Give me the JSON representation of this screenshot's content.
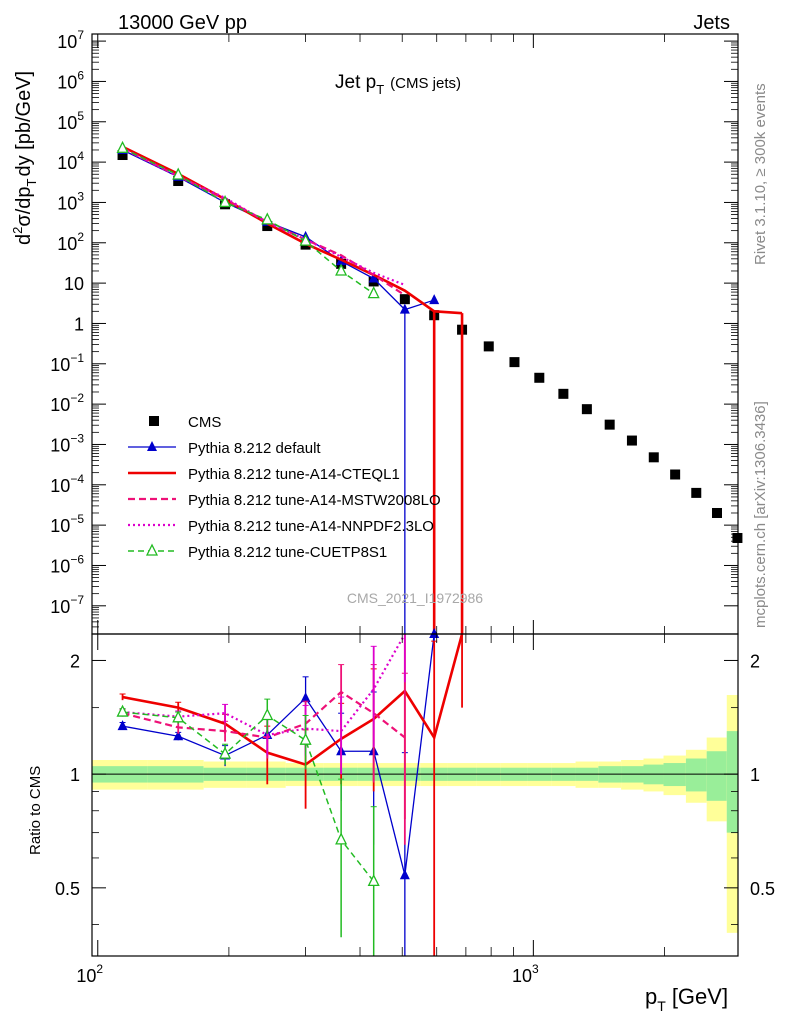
{
  "header": {
    "process": "13000 GeV pp",
    "category": "Jets"
  },
  "side_labels": {
    "rivet": "Rivet 3.1.10, ≥ 300k events",
    "mcplots": "mcplots.cern.ch [arXiv:1306.3436]"
  },
  "watermark": "CMS_2021_I1972986",
  "chart_data": [
    {
      "type": "scatter",
      "panel": "main",
      "title": "Jet p_T (CMS jets)",
      "title_main": "Jet p",
      "title_sub": "T",
      "title_suffix": "(CMS jets)",
      "xlabel": "p_T [GeV]",
      "xlabel_main": "p",
      "xlabel_sub": "T",
      "xlabel_unit": "[GeV]",
      "ylabel": "d²σ/dp_T dy [pb/GeV]",
      "ylabel_parts": {
        "d": "d",
        "sup2": "2",
        "sigma": "σ/dp",
        "subT": "T",
        "rest": "dy [pb/GeV]"
      },
      "xscale": "log",
      "yscale": "log",
      "xlim": [
        97,
        2950
      ],
      "ylim": [
        2e-08,
        15000000.0
      ],
      "x_ticks": [
        {
          "v": 100,
          "base": "10",
          "exp": "2"
        },
        {
          "v": 1000,
          "base": "10",
          "exp": "3"
        }
      ],
      "y_ticks": [
        {
          "v": 10000000.0,
          "base": "10",
          "exp": "7"
        },
        {
          "v": 1000000.0,
          "base": "10",
          "exp": "6"
        },
        {
          "v": 100000.0,
          "base": "10",
          "exp": "5"
        },
        {
          "v": 10000.0,
          "base": "10",
          "exp": "4"
        },
        {
          "v": 1000.0,
          "base": "10",
          "exp": "3"
        },
        {
          "v": 100.0,
          "base": "10",
          "exp": "2"
        },
        {
          "v": 10,
          "base": "10",
          "exp": ""
        },
        {
          "v": 1,
          "base": "1",
          "exp": ""
        },
        {
          "v": 0.1,
          "base": "10",
          "exp": "−1"
        },
        {
          "v": 0.01,
          "base": "10",
          "exp": "−2"
        },
        {
          "v": 0.001,
          "base": "10",
          "exp": "−3"
        },
        {
          "v": 0.0001,
          "base": "10",
          "exp": "−4"
        },
        {
          "v": 1e-05,
          "base": "10",
          "exp": "−5"
        },
        {
          "v": 1e-06,
          "base": "10",
          "exp": "−6"
        },
        {
          "v": 1e-07,
          "base": "10",
          "exp": "−7"
        }
      ],
      "legend_position": "bottom-left",
      "series": [
        {
          "name": "CMS",
          "color": "#000000",
          "style": "marker",
          "marker": "square",
          "x": [
            114,
            153,
            196,
            245,
            300,
            362,
            430,
            507,
            592,
            686,
            790,
            905,
            1032,
            1172,
            1327,
            1497,
            1684,
            1890,
            2116,
            2366,
            2640,
            2941
          ],
          "y": [
            15000.0,
            3400.0,
            900.0,
            260.0,
            90.0,
            30.0,
            11.0,
            4.0,
            1.6,
            0.7,
            0.27,
            0.11,
            0.045,
            0.018,
            0.0075,
            0.0031,
            0.00125,
            0.00048,
            0.00018,
            6.3e-05,
            2e-05,
            4.8e-06
          ]
        },
        {
          "name": "Pythia 8.212 default",
          "color": "#0000cc",
          "style": "solid-thin",
          "marker": "triangle",
          "x": [
            114,
            153,
            196,
            245,
            300,
            362,
            430,
            507,
            592
          ],
          "y": [
            20000.0,
            4300.0,
            1000.0,
            330.0,
            140.0,
            35.0,
            13.0,
            2.2,
            3.8
          ]
        },
        {
          "name": "Pythia 8.212 tune-A14-CTEQL1",
          "color": "#ee0000",
          "style": "solid-thick",
          "marker": "none",
          "x": [
            114,
            153,
            196,
            245,
            300,
            362,
            430,
            507,
            592,
            686
          ],
          "y": [
            24000.0,
            5100.0,
            1200.0,
            300.0,
            95.0,
            38.0,
            16.0,
            6.5,
            2.0,
            1.8
          ]
        },
        {
          "name": "Pythia 8.212 tune-A14-MSTW2008LO",
          "color": "#ee1177",
          "style": "dashed",
          "marker": "none",
          "x": [
            114,
            153,
            196,
            245,
            300,
            362,
            430,
            507
          ],
          "y": [
            22000.0,
            4500.0,
            1200.0,
            330.0,
            120.0,
            49.0,
            16.0,
            5.0
          ]
        },
        {
          "name": "Pythia 8.212 tune-A14-NNPDF2.3LO",
          "color": "#dd00cc",
          "style": "dotted",
          "marker": "none",
          "x": [
            114,
            153,
            196,
            245,
            300,
            362,
            430,
            507
          ],
          "y": [
            22000.0,
            4400.0,
            1300.0,
            320.0,
            120.0,
            45.0,
            18.0,
            9.0
          ]
        },
        {
          "name": "Pythia 8.212 tune-CUETP8S1",
          "color": "#22bb22",
          "style": "dashed-thin",
          "marker": "open-triangle",
          "x": [
            114,
            153,
            196,
            245,
            300,
            362,
            430
          ],
          "y": [
            22000.0,
            4800.0,
            1000.0,
            370.0,
            110.0,
            20.0,
            5.5
          ]
        }
      ]
    },
    {
      "type": "line",
      "panel": "ratio",
      "ylabel": "Ratio to CMS",
      "yscale": "log",
      "xlim": [
        97,
        2950
      ],
      "ylim": [
        0.33,
        2.35
      ],
      "y_ticks": [
        {
          "v": 0.5,
          "label": "0.5"
        },
        {
          "v": 1,
          "label": "1"
        },
        {
          "v": 2,
          "label": "2"
        }
      ],
      "data_band": {
        "x_edges": [
          97,
          130,
          175,
          220,
          270,
          330,
          395,
          465,
          550,
          635,
          740,
          840,
          970,
          1100,
          1250,
          1410,
          1590,
          1790,
          1990,
          2240,
          2500,
          2780,
          2950
        ],
        "stat_half": [
          0.05,
          0.05,
          0.04,
          0.04,
          0.04,
          0.04,
          0.04,
          0.04,
          0.04,
          0.04,
          0.04,
          0.04,
          0.04,
          0.04,
          0.04,
          0.05,
          0.05,
          0.06,
          0.07,
          0.1,
          0.15,
          0.3
        ],
        "total_half": [
          0.09,
          0.09,
          0.08,
          0.08,
          0.07,
          0.07,
          0.07,
          0.07,
          0.07,
          0.07,
          0.07,
          0.07,
          0.07,
          0.07,
          0.08,
          0.08,
          0.09,
          0.1,
          0.12,
          0.16,
          0.25,
          0.62
        ]
      },
      "series": [
        {
          "name": "Pythia 8.212 default",
          "x": [
            114,
            153,
            196,
            245,
            300,
            362,
            430,
            507,
            592
          ],
          "y": [
            1.34,
            1.26,
            1.12,
            1.27,
            1.59,
            1.15,
            1.15,
            0.54,
            2.35
          ],
          "err": [
            0.03,
            0.03,
            0.07,
            0.15,
            0.22,
            0.3,
            0.5,
            0.6,
            1.5
          ]
        },
        {
          "name": "Pythia 8.212 tune-A14-CTEQL1",
          "x": [
            114,
            153,
            196,
            245,
            300,
            362,
            430,
            507,
            592,
            686
          ],
          "y": [
            1.6,
            1.5,
            1.36,
            1.14,
            1.06,
            1.24,
            1.4,
            1.66,
            1.25,
            3.0
          ],
          "err": [
            0.03,
            0.05,
            0.08,
            0.2,
            0.25,
            0.3,
            0.5,
            0.9,
            1.0,
            1.5
          ]
        },
        {
          "name": "Pythia 8.212 tune-A14-MSTW2008LO",
          "x": [
            114,
            153,
            196,
            245,
            300,
            362,
            430,
            507
          ],
          "y": [
            1.45,
            1.33,
            1.3,
            1.25,
            1.36,
            1.65,
            1.45,
            1.25
          ],
          "err": [
            0.03,
            0.05,
            0.08,
            0.15,
            0.2,
            0.3,
            0.5,
            0.6
          ]
        },
        {
          "name": "Pythia 8.212 tune-A14-NNPDF2.3LO",
          "x": [
            114,
            153,
            196,
            245,
            300,
            362,
            430,
            507
          ],
          "y": [
            1.46,
            1.42,
            1.45,
            1.27,
            1.32,
            1.3,
            1.68,
            2.35
          ],
          "err": [
            0.03,
            0.05,
            0.08,
            0.15,
            0.2,
            0.3,
            0.5,
            0.6
          ]
        },
        {
          "name": "Pythia 8.212 tune-CUETP8S1",
          "x": [
            114,
            153,
            196,
            245,
            300,
            362,
            430
          ],
          "y": [
            1.46,
            1.41,
            1.13,
            1.43,
            1.23,
            0.67,
            0.52
          ],
          "err": [
            0.03,
            0.05,
            0.07,
            0.15,
            0.2,
            0.3,
            0.3
          ]
        }
      ]
    }
  ]
}
